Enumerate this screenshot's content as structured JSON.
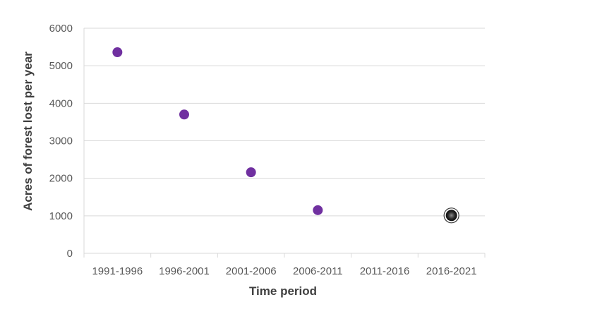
{
  "chart_data": {
    "type": "scatter",
    "title": "",
    "xlabel": "Time period",
    "ylabel": "Acres of forest lost per year",
    "categories": [
      "1991-1996",
      "1996-2001",
      "2001-2006",
      "2006-2011",
      "2011-2016",
      "2016-2021"
    ],
    "ylim": [
      0,
      6000
    ],
    "yticks": [
      0,
      1000,
      2000,
      3000,
      4000,
      5000,
      6000
    ],
    "grid": true,
    "legend": "none",
    "series": [
      {
        "values": [
          5360,
          3700,
          2160,
          1150,
          null,
          null
        ],
        "color": "#7030a0"
      },
      {
        "values": [
          null,
          null,
          null,
          null,
          null,
          1010
        ],
        "color": "#262626"
      }
    ]
  }
}
